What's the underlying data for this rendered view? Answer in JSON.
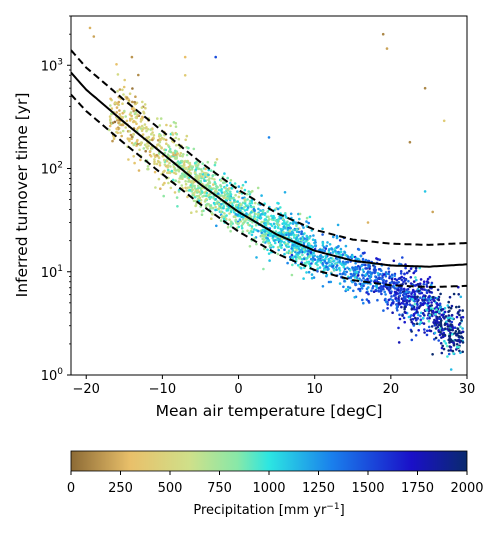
{
  "chart_data": {
    "type": "scatter",
    "xlabel": "Mean air temperature [degC]",
    "ylabel": "Inferred turnover time [yr]",
    "xlim": [
      -22,
      30
    ],
    "ylim": [
      1,
      3000
    ],
    "y_scale": "log",
    "x_ticks": [
      -20,
      -10,
      0,
      10,
      20,
      30
    ],
    "y_ticks": [
      {
        "value": 1,
        "label": "10^0"
      },
      {
        "value": 10,
        "label": "10^1"
      },
      {
        "value": 100,
        "label": "10^2"
      },
      {
        "value": 1000,
        "label": "10^3"
      }
    ],
    "grid": false,
    "fit_lines": {
      "x": [
        -22,
        -20,
        -15,
        -10,
        -5,
        0,
        5,
        10,
        15,
        20,
        25,
        30
      ],
      "central": [
        850,
        580,
        280,
        140,
        70,
        38,
        23,
        16,
        12.8,
        11.5,
        11.2,
        11.8
      ],
      "upper": [
        1400,
        950,
        460,
        230,
        115,
        62,
        37,
        25.5,
        20.5,
        18.7,
        18.2,
        19
      ],
      "lower": [
        520,
        360,
        175,
        88,
        45,
        24.5,
        15,
        10.4,
        8.3,
        7.4,
        7.1,
        7.3
      ],
      "style_central": "solid",
      "style_bounds": "dashed",
      "color": "#000000"
    },
    "scatter_cloud": {
      "description_points": [
        {
          "x": -15,
          "y": 350,
          "precip": 350
        },
        {
          "x": -12,
          "y": 200,
          "precip": 450
        },
        {
          "x": -9,
          "y": 120,
          "precip": 600
        },
        {
          "x": -5,
          "y": 70,
          "precip": 750
        },
        {
          "x": 0,
          "y": 40,
          "precip": 900
        },
        {
          "x": 5,
          "y": 25,
          "precip": 1000
        },
        {
          "x": 10,
          "y": 15,
          "precip": 1150
        },
        {
          "x": 15,
          "y": 11,
          "precip": 1300
        },
        {
          "x": 20,
          "y": 7,
          "precip": 1550
        },
        {
          "x": 25,
          "y": 4.5,
          "precip": 1750
        },
        {
          "x": 28,
          "y": 2.8,
          "precip": 1950
        }
      ],
      "outliers": [
        {
          "x": -19.5,
          "y": 2300,
          "precip": 250
        },
        {
          "x": -19,
          "y": 1900,
          "precip": 200
        },
        {
          "x": -14,
          "y": 1200,
          "precip": 150
        },
        {
          "x": -7,
          "y": 1200,
          "precip": 300
        },
        {
          "x": -3,
          "y": 1200,
          "precip": 1500
        },
        {
          "x": -7,
          "y": 800,
          "precip": 400
        },
        {
          "x": 4,
          "y": 200,
          "precip": 1300
        },
        {
          "x": 19,
          "y": 2000,
          "precip": 100
        },
        {
          "x": 19.5,
          "y": 1450,
          "precip": 200
        },
        {
          "x": 24.5,
          "y": 600,
          "precip": 100
        },
        {
          "x": 22.5,
          "y": 180,
          "precip": 100
        },
        {
          "x": 27,
          "y": 290,
          "precip": 400
        },
        {
          "x": 24.5,
          "y": 60,
          "precip": 1100
        },
        {
          "x": 25.5,
          "y": 38,
          "precip": 200
        },
        {
          "x": 17,
          "y": 30,
          "precip": 250
        }
      ]
    },
    "colorbar": {
      "label": "Precipitation [mm yr^-1]",
      "min": 0,
      "max": 2000,
      "ticks": [
        "0",
        "250",
        "500",
        "750",
        "1000",
        "1250",
        "1500",
        "1750",
        "2000"
      ],
      "colormap": [
        "#8c6a35",
        "#e9c06a",
        "#cfe08a",
        "#88e8a8",
        "#2ce6e2",
        "#1a7fec",
        "#1a10c8",
        "#0a2a6e"
      ]
    }
  }
}
